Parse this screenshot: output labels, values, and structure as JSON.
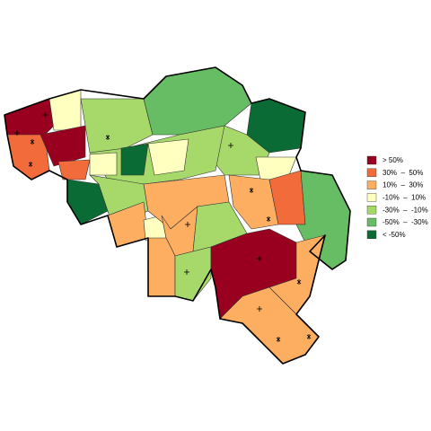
{
  "legend": {
    "items": [
      {
        "label": "> 50%",
        "color": "#99001f"
      },
      {
        "label": "30%  –  50%",
        "color": "#f26b3b"
      },
      {
        "label": "10%  –  30%",
        "color": "#fdae61"
      },
      {
        "label": "-10%  –  10%",
        "color": "#ffffbf"
      },
      {
        "label": "-30%  –  -10%",
        "color": "#a6d96a"
      },
      {
        "label": "-50%  –  -30%",
        "color": "#66bd63"
      },
      {
        "label": "< -50%",
        "color": "#0b6b35"
      }
    ]
  }
}
